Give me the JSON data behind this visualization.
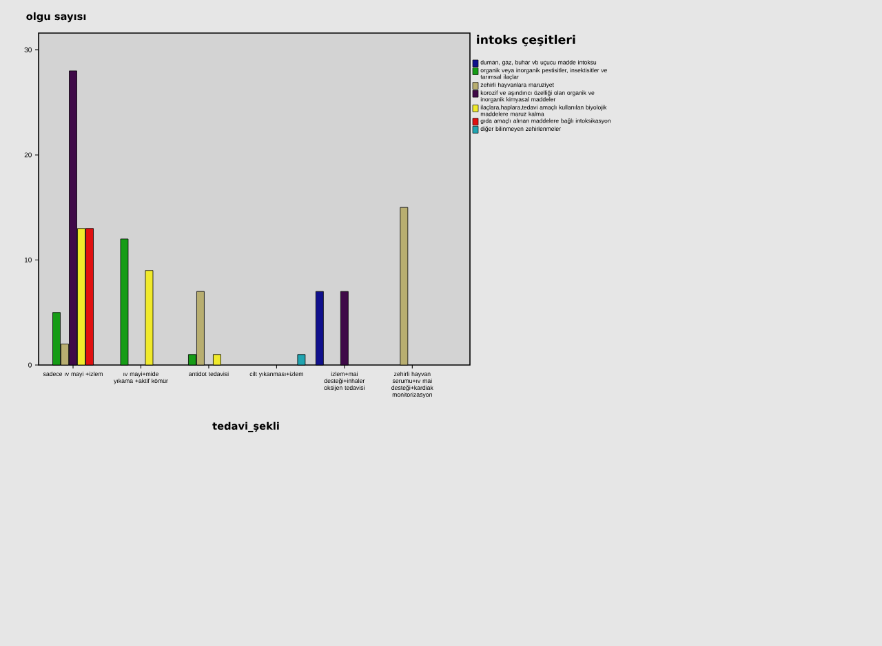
{
  "chart_data": {
    "type": "bar",
    "xlabel": "tedavi_şekli",
    "ylabel": "olgu sayısı",
    "legend_title": "intoks çeşitleri",
    "categories": [
      "sadece ıv mayi +izlem",
      "ıv mayi+mide yıkama +aktif kömür",
      "antidot tedavisi",
      "cilt yıkanması+izlem",
      "izlem+mai desteği+inhaler oksijen tedavisi",
      "zehirli hayvan serumu+ıv mai desteği+kardiak monitorizasyon"
    ],
    "series": [
      {
        "name": "duman, gaz, buhar vb uçucu madde intoksu",
        "color": "#10108c",
        "values": [
          null,
          null,
          null,
          null,
          7,
          null
        ]
      },
      {
        "name": "organik veya inorganik pestisitler, insektisitler ve tarımsal ilaçlar",
        "color": "#169c16",
        "values": [
          5,
          12,
          1,
          null,
          null,
          null
        ]
      },
      {
        "name": "zehirli hayvanlara maruziyet",
        "color": "#b8ae70",
        "values": [
          2,
          null,
          7,
          null,
          null,
          15
        ]
      },
      {
        "name": "korozif ve aşındırıcı özelliği olan organik ve inorganik kimyasal maddeler",
        "color": "#3f0a48",
        "values": [
          28,
          null,
          null,
          null,
          7,
          null
        ]
      },
      {
        "name": "ilaçlara,haplara,tedavi amaçlı kullanılan biyolojik maddelere maruz kalma",
        "color": "#f0ea2c",
        "values": [
          13,
          9,
          1,
          null,
          null,
          null
        ]
      },
      {
        "name": "gıda amaçlı alınan maddelere bağlı intoksikasyon",
        "color": "#e01010",
        "values": [
          13,
          null,
          null,
          null,
          null,
          null
        ]
      },
      {
        "name": "diğer bilinmeyen zehirlenmeler",
        "color": "#20a4b0",
        "values": [
          null,
          null,
          null,
          1,
          null,
          null
        ]
      }
    ],
    "ylim": [
      0,
      31.6
    ],
    "yticks": [
      0,
      10,
      20,
      30
    ],
    "grid": false,
    "legend": "right"
  }
}
